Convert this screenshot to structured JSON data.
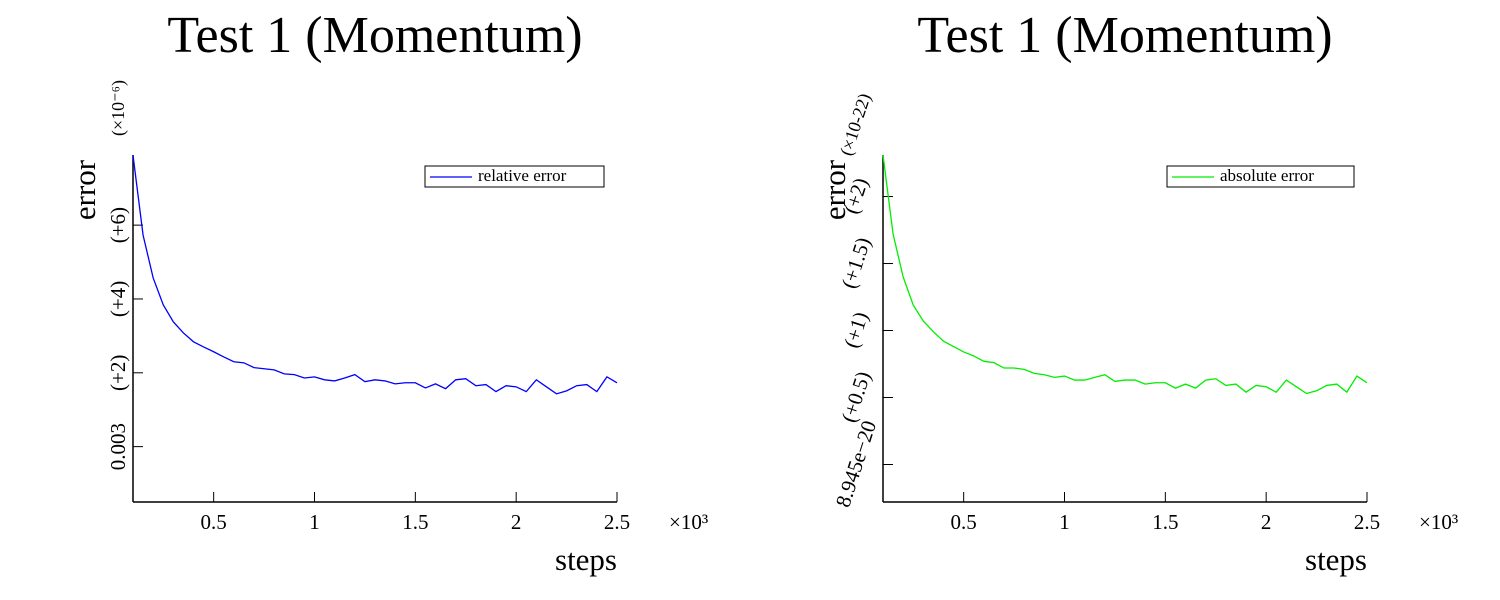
{
  "chart_data": [
    {
      "type": "line",
      "title": "Test 1 (Momentum)",
      "x_label": "steps",
      "y_label": "error",
      "x_multiplier": "×10³",
      "y_multiplier": "(×10⁻⁶)",
      "x": [
        0.1,
        0.15,
        0.2,
        0.25,
        0.3,
        0.35,
        0.4,
        0.45,
        0.5,
        0.55,
        0.6,
        0.65,
        0.7,
        0.75,
        0.8,
        0.85,
        0.9,
        0.95,
        1.0,
        1.05,
        1.1,
        1.15,
        1.2,
        1.25,
        1.3,
        1.35,
        1.4,
        1.45,
        1.5,
        1.55,
        1.6,
        1.65,
        1.7,
        1.75,
        1.8,
        1.85,
        1.9,
        1.95,
        2.0,
        2.05,
        2.1,
        2.15,
        2.2,
        2.25,
        2.3,
        2.35,
        2.4,
        2.45,
        2.5
      ],
      "series": [
        {
          "name": "relative error",
          "color": "#0000ff",
          "values": [
            0.00300789,
            0.00300573,
            0.00300457,
            0.00300384,
            0.00300338,
            0.00300308,
            0.00300284,
            0.0030027,
            0.00300257,
            0.00300243,
            0.0030023,
            0.00300227,
            0.00300214,
            0.00300211,
            0.00300208,
            0.00300197,
            0.00300195,
            0.00300186,
            0.00300189,
            0.00300181,
            0.00300178,
            0.00300186,
            0.00300195,
            0.00300176,
            0.00300181,
            0.00300178,
            0.0030017,
            0.00300173,
            0.00300173,
            0.00300159,
            0.0030017,
            0.00300157,
            0.00300181,
            0.00300184,
            0.00300165,
            0.00300168,
            0.00300149,
            0.00300165,
            0.00300162,
            0.00300149,
            0.00300181,
            0.00300162,
            0.00300143,
            0.00300151,
            0.00300165,
            0.00300168,
            0.00300149,
            0.00300189,
            0.00300173
          ]
        }
      ],
      "xlim": [
        0.1,
        2.5
      ],
      "xticks": [
        0.5,
        1,
        1.5,
        2,
        2.5
      ],
      "ylim": [
        0.0029985,
        0.0030079
      ],
      "yticks": [
        {
          "value": 0.003,
          "label": "0.003"
        },
        {
          "value": 0.003002,
          "label": "(+2)"
        },
        {
          "value": 0.003004,
          "label": "(+4)"
        },
        {
          "value": 0.003006,
          "label": "(+6)"
        }
      ],
      "legend": "upper right"
    },
    {
      "type": "line",
      "title": "Test 1 (Momentum)",
      "x_label": "steps",
      "y_label": "error",
      "x_multiplier": "×10³",
      "y_multiplier": "(×10-22)",
      "x": [
        0.1,
        0.15,
        0.2,
        0.25,
        0.3,
        0.35,
        0.4,
        0.45,
        0.5,
        0.55,
        0.6,
        0.65,
        0.7,
        0.75,
        0.8,
        0.85,
        0.9,
        0.95,
        1.0,
        1.05,
        1.1,
        1.15,
        1.2,
        1.25,
        1.3,
        1.35,
        1.4,
        1.45,
        1.5,
        1.55,
        1.6,
        1.65,
        1.7,
        1.75,
        1.8,
        1.85,
        1.9,
        1.95,
        2.0,
        2.05,
        2.1,
        2.15,
        2.2,
        2.25,
        2.3,
        2.35,
        2.4,
        2.45,
        2.5
      ],
      "series": [
        {
          "name": "absolute error",
          "color": "#00ee00",
          "values": [
            8.94731e-20,
            8.94672e-20,
            8.9464e-20,
            8.94619e-20,
            8.94607e-20,
            8.94599e-20,
            8.94592e-20,
            8.94588e-20,
            8.94584e-20,
            8.94581e-20,
            8.94577e-20,
            8.94576e-20,
            8.94572e-20,
            8.94572e-20,
            8.94571e-20,
            8.94568e-20,
            8.94567e-20,
            8.94565e-20,
            8.94566e-20,
            8.94563e-20,
            8.94563e-20,
            8.94565e-20,
            8.94567e-20,
            8.94562e-20,
            8.94563e-20,
            8.94563e-20,
            8.9456e-20,
            8.94561e-20,
            8.94561e-20,
            8.94557e-20,
            8.9456e-20,
            8.94557e-20,
            8.94563e-20,
            8.94564e-20,
            8.94559e-20,
            8.9456e-20,
            8.94554e-20,
            8.94559e-20,
            8.94558e-20,
            8.94554e-20,
            8.94563e-20,
            8.94558e-20,
            8.94553e-20,
            8.94555e-20,
            8.94559e-20,
            8.9456e-20,
            8.94554e-20,
            8.94566e-20,
            8.94561e-20
          ]
        }
      ],
      "xlim": [
        0.1,
        2.5
      ],
      "xticks": [
        0.5,
        1,
        1.5,
        2,
        2.5
      ],
      "ylim": [
        8.94472e-20,
        8.94731e-20
      ],
      "yticks": [
        {
          "value": 8.945e-20,
          "label": "8.945e−20"
        },
        {
          "value": 8.9455e-20,
          "label": "(+0.5)"
        },
        {
          "value": 8.946e-20,
          "label": "(+1)"
        },
        {
          "value": 8.9465e-20,
          "label": "(+1.5)"
        },
        {
          "value": 8.947e-20,
          "label": "(+2)"
        }
      ],
      "legend": "upper right"
    }
  ]
}
